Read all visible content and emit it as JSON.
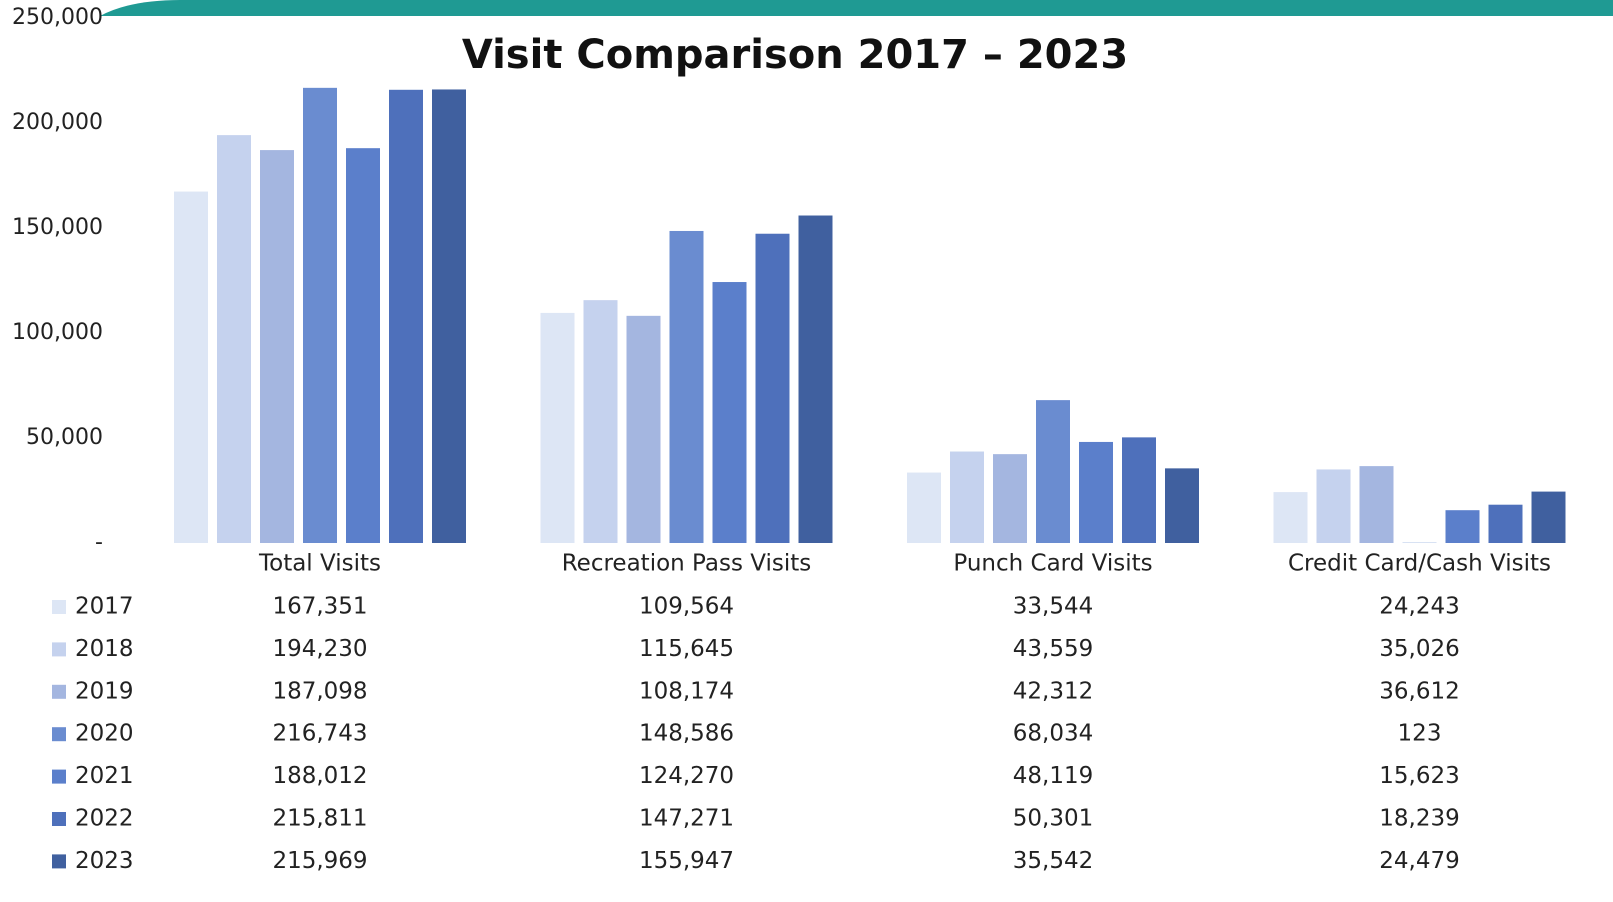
{
  "chart_data": {
    "type": "bar",
    "title": "Visit Comparison 2017 – 2023",
    "categories": [
      "Total Visits",
      "Recreation Pass Visits",
      "Punch Card Visits",
      "Credit Card/Cash Visits"
    ],
    "series": [
      {
        "name": "2017",
        "color": "#dde6f5",
        "values": [
          167351,
          109564,
          33544,
          24243
        ],
        "value_labels": [
          "167,351",
          "109,564",
          "33,544",
          "24,243"
        ]
      },
      {
        "name": "2018",
        "color": "#c5d2ee",
        "values": [
          194230,
          115645,
          43559,
          35026
        ],
        "value_labels": [
          "194,230",
          "115,645",
          "43,559",
          "35,026"
        ]
      },
      {
        "name": "2019",
        "color": "#a4b6e0",
        "values": [
          187098,
          108174,
          42312,
          36612
        ],
        "value_labels": [
          "187,098",
          "108,174",
          "42,312",
          "36,612"
        ]
      },
      {
        "name": "2020",
        "color": "#6a8cd0",
        "values": [
          216743,
          148586,
          68034,
          123
        ],
        "value_labels": [
          "216,743",
          "148,586",
          "68,034",
          "123"
        ]
      },
      {
        "name": "2021",
        "color": "#5b7fcb",
        "values": [
          188012,
          124270,
          48119,
          15623
        ],
        "value_labels": [
          "188,012",
          "124,270",
          "48,119",
          "15,623"
        ]
      },
      {
        "name": "2022",
        "color": "#4e70bb",
        "values": [
          215811,
          147271,
          50301,
          18239
        ],
        "value_labels": [
          "215,811",
          "147,271",
          "50,301",
          "18,239"
        ]
      },
      {
        "name": "2023",
        "color": "#40609f",
        "values": [
          215969,
          155947,
          35542,
          24479
        ],
        "value_labels": [
          "215,969",
          "155,947",
          "35,542",
          "24,479"
        ]
      }
    ],
    "ylim": [
      0,
      250000
    ],
    "yticks": [
      {
        "value": 0,
        "label": "-"
      },
      {
        "value": 50000,
        "label": "50,000"
      },
      {
        "value": 100000,
        "label": "100,000"
      },
      {
        "value": 150000,
        "label": "150,000"
      },
      {
        "value": 200000,
        "label": "200,000"
      },
      {
        "value": 250000,
        "label": "250,000"
      }
    ],
    "grid": false
  }
}
